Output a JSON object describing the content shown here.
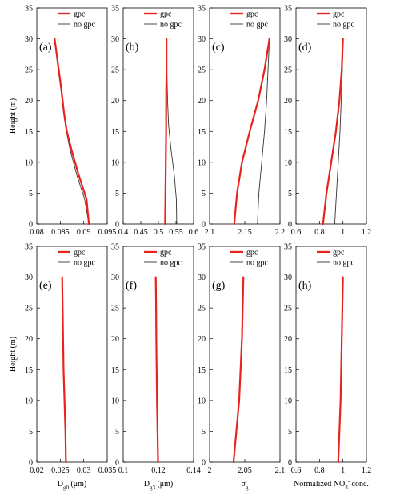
{
  "legend": {
    "series": [
      "gpc",
      "no gpc"
    ]
  },
  "colors": {
    "gpc": "#e8231e",
    "no_gpc": "#333333",
    "frame": "#000000"
  },
  "chart_data": [
    {
      "type": "line",
      "panel_label": "(a)",
      "xlabel": "",
      "xlabel_sub": "",
      "xlabel_tail": "",
      "ylabel": "Height (m)",
      "xlim": [
        0.08,
        0.095
      ],
      "xticks": [
        "0.08",
        "0.085",
        "0.09",
        "0.095"
      ],
      "ylim": [
        0,
        35
      ],
      "yticks": [
        "0",
        "5",
        "10",
        "15",
        "20",
        "25",
        "30",
        "35"
      ],
      "series": [
        {
          "name": "gpc",
          "points": [
            [
              0.0911,
              0
            ],
            [
              0.0906,
              4
            ],
            [
              0.0889,
              8
            ],
            [
              0.0874,
              12
            ],
            [
              0.0864,
              15
            ],
            [
              0.0858,
              18
            ],
            [
              0.0852,
              22
            ],
            [
              0.0845,
              26
            ],
            [
              0.0838,
              30
            ]
          ]
        },
        {
          "name": "no gpc",
          "points": [
            [
              0.0911,
              0
            ],
            [
              0.0902,
              4
            ],
            [
              0.0885,
              8
            ],
            [
              0.0871,
              12
            ],
            [
              0.0863,
              15
            ],
            [
              0.0857,
              18
            ],
            [
              0.0851,
              22
            ],
            [
              0.0844,
              26
            ],
            [
              0.0838,
              30
            ]
          ]
        }
      ]
    },
    {
      "type": "line",
      "panel_label": "(b)",
      "xlabel": "",
      "xlabel_sub": "",
      "xlabel_tail": "",
      "ylabel": "",
      "xlim": [
        0.4,
        0.6
      ],
      "xticks": [
        "0.4",
        "0.45",
        "0.5",
        "0.55",
        "0.6"
      ],
      "ylim": [
        0,
        35
      ],
      "yticks": [
        "0",
        "5",
        "10",
        "15",
        "20",
        "25",
        "30",
        "35"
      ],
      "series": [
        {
          "name": "gpc",
          "points": [
            [
              0.519,
              0
            ],
            [
              0.52,
              5
            ],
            [
              0.521,
              10
            ],
            [
              0.522,
              15
            ],
            [
              0.522,
              20
            ],
            [
              0.523,
              25
            ],
            [
              0.523,
              30
            ]
          ]
        },
        {
          "name": "no gpc",
          "points": [
            [
              0.552,
              0
            ],
            [
              0.551,
              4
            ],
            [
              0.545,
              8
            ],
            [
              0.536,
              12
            ],
            [
              0.529,
              16
            ],
            [
              0.526,
              20
            ],
            [
              0.524,
              25
            ],
            [
              0.523,
              30
            ]
          ]
        }
      ]
    },
    {
      "type": "line",
      "panel_label": "(c)",
      "xlabel": "",
      "xlabel_sub": "",
      "xlabel_tail": "",
      "ylabel": "",
      "xlim": [
        2.1,
        2.2
      ],
      "xticks": [
        "2.1",
        "2.15",
        "2.2"
      ],
      "ylim": [
        0,
        35
      ],
      "yticks": [
        "0",
        "5",
        "10",
        "15",
        "20",
        "25",
        "30",
        "35"
      ],
      "series": [
        {
          "name": "gpc",
          "points": [
            [
              2.135,
              0
            ],
            [
              2.139,
              5
            ],
            [
              2.146,
              10
            ],
            [
              2.157,
              15
            ],
            [
              2.169,
              20
            ],
            [
              2.178,
              25
            ],
            [
              2.185,
              30
            ]
          ]
        },
        {
          "name": "no gpc",
          "points": [
            [
              2.168,
              0
            ],
            [
              2.17,
              5
            ],
            [
              2.174,
              10
            ],
            [
              2.178,
              15
            ],
            [
              2.181,
              20
            ],
            [
              2.183,
              25
            ],
            [
              2.185,
              30
            ]
          ]
        }
      ]
    },
    {
      "type": "line",
      "panel_label": "(d)",
      "xlabel": "",
      "xlabel_sub": "",
      "xlabel_tail": "",
      "ylabel": "",
      "xlim": [
        0.6,
        1.2
      ],
      "xticks": [
        "0.6",
        "0.8",
        "1",
        "1.2"
      ],
      "ylim": [
        0,
        35
      ],
      "yticks": [
        "0",
        "5",
        "10",
        "15",
        "20",
        "25",
        "30",
        "35"
      ],
      "series": [
        {
          "name": "gpc",
          "points": [
            [
              0.83,
              0
            ],
            [
              0.86,
              5
            ],
            [
              0.9,
              10
            ],
            [
              0.94,
              15
            ],
            [
              0.97,
              20
            ],
            [
              0.99,
              25
            ],
            [
              1.0,
              30
            ]
          ]
        },
        {
          "name": "no gpc",
          "points": [
            [
              0.93,
              0
            ],
            [
              0.945,
              5
            ],
            [
              0.96,
              10
            ],
            [
              0.975,
              15
            ],
            [
              0.985,
              20
            ],
            [
              0.995,
              25
            ],
            [
              1.0,
              30
            ]
          ]
        }
      ]
    },
    {
      "type": "line",
      "panel_label": "(e)",
      "xlabel": "D",
      "xlabel_sub": "g0",
      "xlabel_tail": "  (μm)",
      "ylabel": "Height (m)",
      "xlim": [
        0.02,
        0.035
      ],
      "xticks": [
        "0.02",
        "0.025",
        "0.03",
        "0.035"
      ],
      "ylim": [
        0,
        35
      ],
      "yticks": [
        "0",
        "5",
        "10",
        "15",
        "20",
        "25",
        "30",
        "35"
      ],
      "series": [
        {
          "name": "gpc",
          "points": [
            [
              0.0262,
              0
            ],
            [
              0.0261,
              5
            ],
            [
              0.0259,
              10
            ],
            [
              0.0257,
              15
            ],
            [
              0.0256,
              20
            ],
            [
              0.0255,
              25
            ],
            [
              0.0254,
              30
            ]
          ]
        },
        {
          "name": "no gpc",
          "points": [
            [
              0.0262,
              0
            ],
            [
              0.0261,
              5
            ],
            [
              0.0259,
              10
            ],
            [
              0.0257,
              15
            ],
            [
              0.0256,
              20
            ],
            [
              0.0255,
              25
            ],
            [
              0.0254,
              30
            ]
          ]
        }
      ]
    },
    {
      "type": "line",
      "panel_label": "(f)",
      "xlabel": "D",
      "xlabel_sub": "g3",
      "xlabel_tail": "  (μm)",
      "ylabel": "",
      "xlim": [
        0.1,
        0.14
      ],
      "xticks": [
        "0.1",
        "0.12",
        "0.14"
      ],
      "ylim": [
        0,
        35
      ],
      "yticks": [
        "0",
        "5",
        "10",
        "15",
        "20",
        "25",
        "30",
        "35"
      ],
      "series": [
        {
          "name": "gpc",
          "points": [
            [
              0.1198,
              0
            ],
            [
              0.1195,
              5
            ],
            [
              0.1192,
              10
            ],
            [
              0.119,
              15
            ],
            [
              0.1188,
              20
            ],
            [
              0.1187,
              25
            ],
            [
              0.1185,
              30
            ]
          ]
        },
        {
          "name": "no gpc",
          "points": [
            [
              0.1198,
              0
            ],
            [
              0.1195,
              5
            ],
            [
              0.1192,
              10
            ],
            [
              0.119,
              15
            ],
            [
              0.1188,
              20
            ],
            [
              0.1187,
              25
            ],
            [
              0.1185,
              30
            ]
          ]
        }
      ]
    },
    {
      "type": "line",
      "panel_label": "(g)",
      "xlabel": "σ",
      "xlabel_sub": "g",
      "xlabel_tail": "",
      "ylabel": "",
      "xlim": [
        2.0,
        2.1
      ],
      "xticks": [
        "2",
        "2.05",
        "2.1"
      ],
      "ylim": [
        0,
        35
      ],
      "yticks": [
        "0",
        "5",
        "10",
        "15",
        "20",
        "25",
        "30",
        "35"
      ],
      "series": [
        {
          "name": "gpc",
          "points": [
            [
              2.034,
              0
            ],
            [
              2.038,
              5
            ],
            [
              2.042,
              10
            ],
            [
              2.044,
              15
            ],
            [
              2.046,
              20
            ],
            [
              2.047,
              25
            ],
            [
              2.048,
              30
            ]
          ]
        },
        {
          "name": "no gpc",
          "points": [
            [
              2.034,
              0
            ],
            [
              2.038,
              5
            ],
            [
              2.042,
              10
            ],
            [
              2.044,
              15
            ],
            [
              2.046,
              20
            ],
            [
              2.047,
              25
            ],
            [
              2.048,
              30
            ]
          ]
        }
      ]
    },
    {
      "type": "line",
      "panel_label": "(h)",
      "xlabel": "Normalized NO",
      "xlabel_sub": "3",
      "xlabel_sup": "-",
      "xlabel_tail": " conc.",
      "ylabel": "",
      "xlim": [
        0.6,
        1.2
      ],
      "xticks": [
        "0.6",
        "0.8",
        "1",
        "1.2"
      ],
      "ylim": [
        0,
        35
      ],
      "yticks": [
        "0",
        "5",
        "10",
        "15",
        "20",
        "25",
        "30",
        "35"
      ],
      "series": [
        {
          "name": "gpc",
          "points": [
            [
              0.96,
              0
            ],
            [
              0.97,
              5
            ],
            [
              0.98,
              10
            ],
            [
              0.985,
              15
            ],
            [
              0.99,
              20
            ],
            [
              0.995,
              25
            ],
            [
              1.0,
              30
            ]
          ]
        },
        {
          "name": "no gpc",
          "points": [
            [
              0.96,
              0
            ],
            [
              0.97,
              5
            ],
            [
              0.98,
              10
            ],
            [
              0.985,
              15
            ],
            [
              0.99,
              20
            ],
            [
              0.995,
              25
            ],
            [
              1.0,
              30
            ]
          ]
        }
      ]
    }
  ]
}
